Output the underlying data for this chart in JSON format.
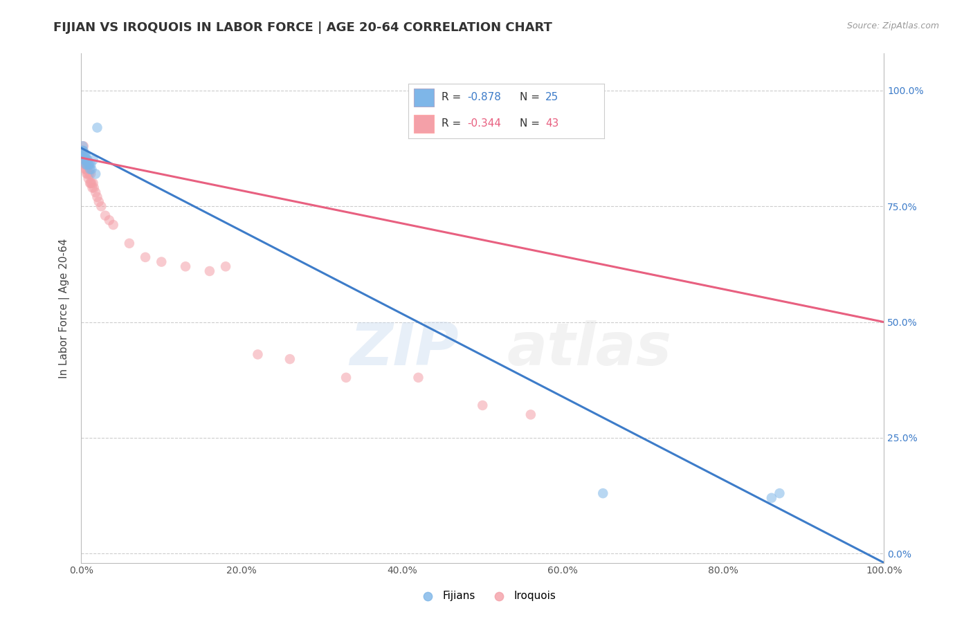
{
  "title": "FIJIAN VS IROQUOIS IN LABOR FORCE | AGE 20-64 CORRELATION CHART",
  "source": "Source: ZipAtlas.com",
  "ylabel": "In Labor Force | Age 20-64",
  "fijian_R": -0.878,
  "fijian_N": 25,
  "iroquois_R": -0.344,
  "iroquois_N": 43,
  "fijian_color": "#7EB6E8",
  "iroquois_color": "#F4A0A8",
  "fijian_line_color": "#3D7CC9",
  "iroquois_line_color": "#E86080",
  "grid_color": "#CCCCCC",
  "fijian_x": [
    0.001,
    0.002,
    0.002,
    0.003,
    0.003,
    0.004,
    0.004,
    0.005,
    0.005,
    0.006,
    0.006,
    0.007,
    0.007,
    0.008,
    0.009,
    0.01,
    0.011,
    0.012,
    0.013,
    0.015,
    0.018,
    0.02,
    0.65,
    0.86,
    0.87
  ],
  "fijian_y": [
    0.87,
    0.88,
    0.87,
    0.86,
    0.87,
    0.85,
    0.86,
    0.86,
    0.85,
    0.86,
    0.84,
    0.85,
    0.84,
    0.85,
    0.84,
    0.84,
    0.83,
    0.84,
    0.83,
    0.85,
    0.82,
    0.92,
    0.13,
    0.12,
    0.13
  ],
  "iroquois_x": [
    0.001,
    0.001,
    0.002,
    0.002,
    0.003,
    0.003,
    0.004,
    0.004,
    0.005,
    0.005,
    0.006,
    0.006,
    0.007,
    0.007,
    0.008,
    0.009,
    0.01,
    0.011,
    0.012,
    0.012,
    0.013,
    0.014,
    0.015,
    0.016,
    0.018,
    0.02,
    0.022,
    0.025,
    0.03,
    0.035,
    0.04,
    0.06,
    0.08,
    0.1,
    0.13,
    0.16,
    0.18,
    0.22,
    0.26,
    0.33,
    0.42,
    0.5,
    0.56
  ],
  "iroquois_y": [
    0.87,
    0.86,
    0.87,
    0.85,
    0.88,
    0.86,
    0.84,
    0.85,
    0.83,
    0.84,
    0.84,
    0.83,
    0.83,
    0.82,
    0.82,
    0.81,
    0.82,
    0.8,
    0.82,
    0.8,
    0.8,
    0.79,
    0.8,
    0.79,
    0.78,
    0.77,
    0.76,
    0.75,
    0.73,
    0.72,
    0.71,
    0.67,
    0.64,
    0.63,
    0.62,
    0.61,
    0.62,
    0.43,
    0.42,
    0.38,
    0.38,
    0.32,
    0.3
  ],
  "fijian_line_x": [
    0.0,
    1.0
  ],
  "fijian_line_y_start": 0.876,
  "fijian_line_y_end": -0.02,
  "iroquois_line_x": [
    0.0,
    1.0
  ],
  "iroquois_line_y_start": 0.855,
  "iroquois_line_y_end": 0.5,
  "xlim": [
    0.0,
    1.0
  ],
  "ylim": [
    -0.02,
    1.08
  ],
  "title_fontsize": 13,
  "label_fontsize": 11,
  "tick_fontsize": 10,
  "marker_size": 110,
  "marker_alpha": 0.55,
  "background_color": "#FFFFFF",
  "yticks": [
    0.0,
    0.25,
    0.5,
    0.75,
    1.0
  ],
  "ytick_labels_right": [
    "0.0%",
    "25.0%",
    "50.0%",
    "75.0%",
    "100.0%"
  ],
  "xticks": [
    0.0,
    0.2,
    0.4,
    0.6,
    0.8,
    1.0
  ],
  "xtick_labels": [
    "0.0%",
    "20.0%",
    "40.0%",
    "60.0%",
    "80.0%",
    "100.0%"
  ],
  "legend_fijian_label": "R = -0.878   N = 25",
  "legend_iroquois_label": "R = -0.344   N = 43",
  "bottom_legend_fijians": "Fijians",
  "bottom_legend_iroquois": "Iroquois"
}
